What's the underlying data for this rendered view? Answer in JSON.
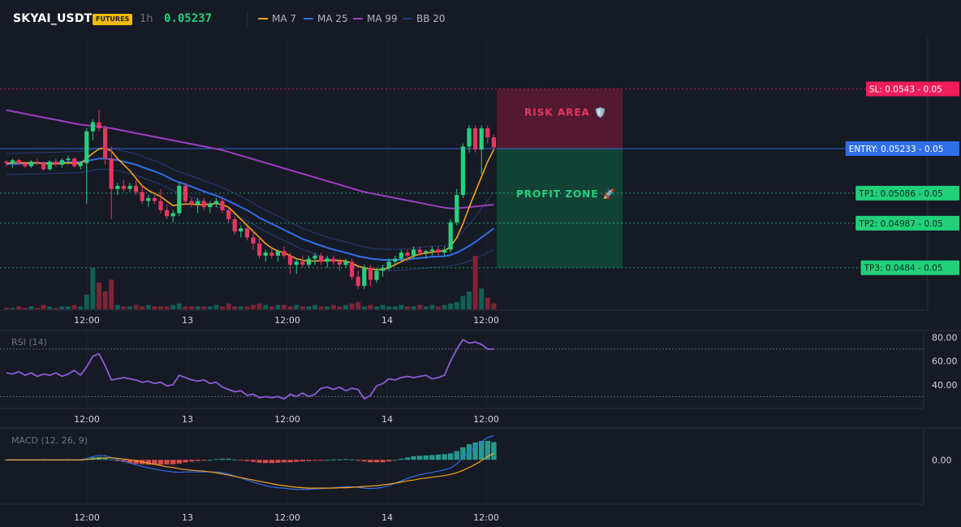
{
  "header": {
    "symbol": "SKYAI_USDT",
    "badge": "FUTURES",
    "timeframe": "1h",
    "price": "0.05237",
    "legend": [
      {
        "name": "MA 7",
        "color": "#f7a21b"
      },
      {
        "name": "MA 25",
        "color": "#2f6fe8"
      },
      {
        "name": "MA 99",
        "color": "#9c3fc0"
      },
      {
        "name": "BB 20",
        "color": "#1e3b7a"
      }
    ]
  },
  "colors": {
    "up": "#26d07c",
    "down": "#e9365f",
    "vol_up": "#0f5f55",
    "vol_down": "#7d2434",
    "sl": "#f01c5c",
    "entry": "#2f6fe8",
    "tp": "#21d17a",
    "rsi": "#8e5bd6",
    "macd": "#2f6fe8",
    "signal": "#f7a21b",
    "hist_pos": "#26a69a",
    "hist_neg": "#ef5350"
  },
  "chart_data": [
    {
      "type": "candlestick",
      "ylim": [
        0.047,
        0.056
      ],
      "x_ticks": [
        "12:00",
        "13",
        "12:00",
        "14",
        "12:00"
      ],
      "levels": [
        {
          "label": "SL: 0.0543",
          "suffix": "0.05",
          "value": 0.0543,
          "kind": "sl"
        },
        {
          "label": "ENTRY: 0.05233",
          "suffix": "0.05",
          "value": 0.05233,
          "kind": "entry"
        },
        {
          "label": "TP1: 0.05086",
          "suffix": "0.05",
          "value": 0.05086,
          "kind": "tp"
        },
        {
          "label": "TP2: 0.04987",
          "suffix": "0.05",
          "value": 0.04987,
          "kind": "tp"
        },
        {
          "label": "TP3: 0.0484",
          "suffix": "0.05",
          "value": 0.0484,
          "kind": "tp"
        }
      ],
      "zones": {
        "risk": "RISK AREA 🛡️",
        "profit": "PROFIT ZONE 🚀"
      },
      "candles": [
        [
          0.0519,
          0.05195,
          0.05175,
          0.05185
        ],
        [
          0.05185,
          0.052,
          0.0517,
          0.05195
        ],
        [
          0.05195,
          0.052,
          0.0518,
          0.05185
        ],
        [
          0.05185,
          0.0519,
          0.0517,
          0.05175
        ],
        [
          0.05175,
          0.05195,
          0.0517,
          0.0519
        ],
        [
          0.0519,
          0.052,
          0.0518,
          0.05185
        ],
        [
          0.05185,
          0.0519,
          0.0516,
          0.05165
        ],
        [
          0.05165,
          0.05195,
          0.0516,
          0.0519
        ],
        [
          0.0519,
          0.052,
          0.05175,
          0.0518
        ],
        [
          0.0518,
          0.052,
          0.0517,
          0.05195
        ],
        [
          0.05195,
          0.0521,
          0.0518,
          0.052
        ],
        [
          0.052,
          0.05205,
          0.0517,
          0.05175
        ],
        [
          0.05175,
          0.0519,
          0.05165,
          0.05185
        ],
        [
          0.05185,
          0.053,
          0.0505,
          0.0529
        ],
        [
          0.0529,
          0.0533,
          0.0526,
          0.0532
        ],
        [
          0.0532,
          0.0536,
          0.0529,
          0.053
        ],
        [
          0.053,
          0.0531,
          0.0518,
          0.052
        ],
        [
          0.052,
          0.0524,
          0.05,
          0.051
        ],
        [
          0.051,
          0.0512,
          0.0508,
          0.0511
        ],
        [
          0.0511,
          0.0513,
          0.0509,
          0.051
        ],
        [
          0.051,
          0.0512,
          0.0509,
          0.0511
        ],
        [
          0.0511,
          0.0513,
          0.0508,
          0.0509
        ],
        [
          0.0509,
          0.0511,
          0.0505,
          0.0506
        ],
        [
          0.0506,
          0.0508,
          0.0504,
          0.0507
        ],
        [
          0.0507,
          0.0508,
          0.0505,
          0.0506
        ],
        [
          0.0506,
          0.051,
          0.0502,
          0.0503
        ],
        [
          0.0503,
          0.0505,
          0.05,
          0.0501
        ],
        [
          0.0501,
          0.0503,
          0.0499,
          0.0502
        ],
        [
          0.0502,
          0.0512,
          0.0501,
          0.0511
        ],
        [
          0.0511,
          0.0512,
          0.0505,
          0.0506
        ],
        [
          0.0506,
          0.0507,
          0.0504,
          0.0505
        ],
        [
          0.0505,
          0.0507,
          0.0502,
          0.0506
        ],
        [
          0.0506,
          0.0507,
          0.0503,
          0.0504
        ],
        [
          0.0504,
          0.0506,
          0.0502,
          0.0505
        ],
        [
          0.0505,
          0.0507,
          0.0504,
          0.0506
        ],
        [
          0.0506,
          0.0507,
          0.0502,
          0.0503
        ],
        [
          0.0503,
          0.0504,
          0.0499,
          0.05
        ],
        [
          0.05,
          0.0501,
          0.0495,
          0.0496
        ],
        [
          0.0496,
          0.0498,
          0.0494,
          0.0497
        ],
        [
          0.0497,
          0.0498,
          0.0493,
          0.0494
        ],
        [
          0.0494,
          0.0496,
          0.049,
          0.0492
        ],
        [
          0.0492,
          0.0494,
          0.0487,
          0.0488
        ],
        [
          0.0488,
          0.049,
          0.0486,
          0.0489
        ],
        [
          0.0489,
          0.0491,
          0.0487,
          0.0488
        ],
        [
          0.0488,
          0.049,
          0.0486,
          0.04895
        ],
        [
          0.04895,
          0.0491,
          0.0487,
          0.0488
        ],
        [
          0.0488,
          0.0489,
          0.0482,
          0.0485
        ],
        [
          0.0485,
          0.0487,
          0.0482,
          0.0486
        ],
        [
          0.0486,
          0.0488,
          0.0484,
          0.0485
        ],
        [
          0.0485,
          0.0488,
          0.0484,
          0.0487
        ],
        [
          0.0487,
          0.0489,
          0.0485,
          0.0488
        ],
        [
          0.0488,
          0.0489,
          0.0485,
          0.0486
        ],
        [
          0.0486,
          0.0488,
          0.0484,
          0.0487
        ],
        [
          0.0487,
          0.0488,
          0.0485,
          0.0486
        ],
        [
          0.0486,
          0.0487,
          0.0483,
          0.0485
        ],
        [
          0.0485,
          0.0487,
          0.0484,
          0.0486
        ],
        [
          0.0486,
          0.0487,
          0.048,
          0.0481
        ],
        [
          0.0481,
          0.0483,
          0.0477,
          0.0478
        ],
        [
          0.0478,
          0.0485,
          0.0477,
          0.0484
        ],
        [
          0.0484,
          0.0485,
          0.0478,
          0.048
        ],
        [
          0.048,
          0.0484,
          0.0479,
          0.0483
        ],
        [
          0.0483,
          0.0485,
          0.0481,
          0.0484
        ],
        [
          0.0484,
          0.0487,
          0.0483,
          0.0486
        ],
        [
          0.0486,
          0.0488,
          0.0485,
          0.0487
        ],
        [
          0.0487,
          0.049,
          0.0486,
          0.0489
        ],
        [
          0.0489,
          0.049,
          0.0486,
          0.0488
        ],
        [
          0.0488,
          0.0491,
          0.0487,
          0.049
        ],
        [
          0.049,
          0.0491,
          0.0488,
          0.0489
        ],
        [
          0.0489,
          0.049,
          0.0487,
          0.04895
        ],
        [
          0.04895,
          0.0491,
          0.0488,
          0.049
        ],
        [
          0.049,
          0.0491,
          0.0488,
          0.0489
        ],
        [
          0.0489,
          0.0491,
          0.0488,
          0.049
        ],
        [
          0.049,
          0.05,
          0.0489,
          0.0499
        ],
        [
          0.0499,
          0.051,
          0.0498,
          0.0508
        ],
        [
          0.0508,
          0.0525,
          0.0507,
          0.0524
        ],
        [
          0.0524,
          0.0531,
          0.0522,
          0.053
        ],
        [
          0.053,
          0.0531,
          0.0522,
          0.0523
        ],
        [
          0.0523,
          0.0531,
          0.0515,
          0.053
        ],
        [
          0.053,
          0.0531,
          0.0525,
          0.0527
        ],
        [
          0.0527,
          0.0528,
          0.0523,
          0.05237
        ]
      ],
      "volume": [
        1,
        1,
        2,
        1,
        2,
        1,
        3,
        2,
        1,
        2,
        2,
        3,
        2,
        10,
        28,
        18,
        12,
        20,
        3,
        2,
        2,
        3,
        2,
        3,
        2,
        2,
        2,
        3,
        4,
        2,
        2,
        2,
        2,
        2,
        3,
        2,
        4,
        2,
        2,
        2,
        3,
        4,
        3,
        2,
        3,
        3,
        2,
        3,
        2,
        2,
        3,
        2,
        2,
        3,
        2,
        3,
        4,
        5,
        2,
        3,
        2,
        3,
        2,
        2,
        3,
        2,
        2,
        3,
        2,
        3,
        2,
        3,
        4,
        5,
        9,
        12,
        36,
        14,
        8,
        4
      ],
      "ma7": [
        0.05185,
        0.05186,
        0.05187,
        0.05186,
        0.05186,
        0.05186,
        0.05184,
        0.05183,
        0.05183,
        0.05184,
        0.05186,
        0.05184,
        0.05184,
        0.052,
        0.05218,
        0.05232,
        0.05235,
        0.05225,
        0.052,
        0.0518,
        0.0516,
        0.05135,
        0.0511,
        0.05095,
        0.05085,
        0.05075,
        0.0506,
        0.05045,
        0.05048,
        0.0505,
        0.0505,
        0.05048,
        0.05048,
        0.0505,
        0.05052,
        0.05048,
        0.0504,
        0.0502,
        0.05,
        0.0498,
        0.0496,
        0.0494,
        0.0492,
        0.04905,
        0.04895,
        0.0489,
        0.0488,
        0.0487,
        0.04865,
        0.04862,
        0.04862,
        0.04864,
        0.04864,
        0.04865,
        0.04864,
        0.04862,
        0.04855,
        0.04845,
        0.0484,
        0.04836,
        0.04834,
        0.04834,
        0.0484,
        0.0485,
        0.0486,
        0.0487,
        0.04878,
        0.04885,
        0.04888,
        0.04892,
        0.04894,
        0.04896,
        0.0491,
        0.0494,
        0.04985,
        0.0504,
        0.0509,
        0.0514,
        0.0519,
        0.0523
      ],
      "ma25": [
        0.05182,
        0.05183,
        0.05183,
        0.05184,
        0.05184,
        0.05185,
        0.05185,
        0.05186,
        0.05186,
        0.05187,
        0.05188,
        0.05188,
        0.05189,
        0.05192,
        0.05196,
        0.052,
        0.052,
        0.05198,
        0.05195,
        0.0519,
        0.05185,
        0.0518,
        0.05172,
        0.05165,
        0.05158,
        0.0515,
        0.0514,
        0.0513,
        0.05122,
        0.05115,
        0.05108,
        0.051,
        0.05092,
        0.05085,
        0.05078,
        0.0507,
        0.0506,
        0.0505,
        0.0504,
        0.0503,
        0.05018,
        0.05005,
        0.04995,
        0.04985,
        0.04975,
        0.04965,
        0.04955,
        0.04945,
        0.04935,
        0.04928,
        0.0492,
        0.04913,
        0.04906,
        0.049,
        0.04895,
        0.0489,
        0.04884,
        0.04878,
        0.04874,
        0.0487,
        0.04868,
        0.04866,
        0.04866,
        0.04866,
        0.04867,
        0.04868,
        0.0487,
        0.04872,
        0.04874,
        0.04876,
        0.04877,
        0.04878,
        0.04882,
        0.0489,
        0.049,
        0.04912,
        0.04925,
        0.0494,
        0.04955,
        0.0497
      ],
      "ma99": [
        0.0536,
        0.05356,
        0.05352,
        0.05348,
        0.05344,
        0.0534,
        0.05336,
        0.05332,
        0.05328,
        0.05324,
        0.0532,
        0.05316,
        0.05312,
        0.0531,
        0.05308,
        0.05306,
        0.05303,
        0.053,
        0.05296,
        0.05292,
        0.05288,
        0.05284,
        0.0528,
        0.05276,
        0.05272,
        0.05268,
        0.05264,
        0.0526,
        0.05256,
        0.05252,
        0.05248,
        0.05244,
        0.0524,
        0.05236,
        0.05232,
        0.05228,
        0.05222,
        0.05216,
        0.0521,
        0.05204,
        0.05198,
        0.05192,
        0.05186,
        0.0518,
        0.05174,
        0.05168,
        0.05162,
        0.05156,
        0.0515,
        0.05144,
        0.05138,
        0.05132,
        0.05126,
        0.0512,
        0.05114,
        0.05108,
        0.05102,
        0.05096,
        0.0509,
        0.05086,
        0.05082,
        0.05078,
        0.05074,
        0.0507,
        0.05066,
        0.05062,
        0.05058,
        0.05054,
        0.0505,
        0.05046,
        0.05042,
        0.05038,
        0.05036,
        0.05036,
        0.05038,
        0.0504,
        0.05042,
        0.05044,
        0.05046,
        0.05048
      ]
    },
    {
      "type": "line",
      "title": "RSI (14)",
      "ylim": [
        20,
        85
      ],
      "y_ticks": [
        "80.00",
        "60.00",
        "40.00"
      ],
      "bands": [
        70,
        30
      ],
      "values": [
        50,
        49,
        51,
        48,
        50,
        47,
        49,
        48,
        50,
        47,
        49,
        52,
        48,
        55,
        64,
        66,
        56,
        44,
        45,
        46,
        45,
        44,
        42,
        43,
        41,
        42,
        39,
        40,
        48,
        46,
        44,
        43,
        44,
        41,
        42,
        38,
        36,
        34,
        35,
        31,
        32,
        29,
        30,
        29,
        30,
        28,
        32,
        30,
        33,
        30,
        32,
        37,
        38,
        36,
        38,
        35,
        37,
        36,
        28,
        31,
        39,
        41,
        45,
        44,
        46,
        47,
        46,
        47,
        48,
        45,
        46,
        48,
        60,
        70,
        78,
        75,
        76,
        74,
        70,
        70
      ]
    },
    {
      "type": "macd",
      "title": "MACD (12, 26, 9)",
      "ylim": [
        -0.0011,
        0.00075
      ],
      "y_ticks": [
        "0.00"
      ],
      "macd": [
        0,
        0,
        0,
        0,
        0,
        0,
        0,
        0,
        0,
        0,
        0,
        0,
        0,
        3e-05,
        8e-05,
        0.00011,
        0.0001,
        6e-05,
        1e-05,
        -3e-05,
        -8e-05,
        -0.00012,
        -0.00016,
        -0.0002,
        -0.00023,
        -0.00026,
        -0.00028,
        -0.0003,
        -0.00031,
        -0.0003,
        -0.0003,
        -0.0003,
        -0.0003,
        -0.0003,
        -0.0003,
        -0.00032,
        -0.00035,
        -0.0004,
        -0.00045,
        -0.0005,
        -0.00055,
        -0.0006,
        -0.00064,
        -0.00067,
        -0.00069,
        -0.0007,
        -0.00072,
        -0.00073,
        -0.00073,
        -0.00073,
        -0.00072,
        -0.00071,
        -0.0007,
        -0.00069,
        -0.00068,
        -0.00067,
        -0.00067,
        -0.00068,
        -0.0007,
        -0.00071,
        -0.0007,
        -0.00068,
        -0.00064,
        -0.00058,
        -0.00052,
        -0.00046,
        -0.00041,
        -0.00037,
        -0.00034,
        -0.00031,
        -0.00028,
        -0.00025,
        -0.0002,
        -0.0001,
        5e-05,
        0.0002,
        0.00032,
        0.00045,
        0.00055,
        0.0006
      ],
      "signal": [
        0,
        0,
        0,
        0,
        0,
        0,
        0,
        0,
        0,
        0,
        0,
        0,
        0,
        1e-05,
        2e-05,
        4e-05,
        5e-05,
        5e-05,
        4e-05,
        2e-05,
        0,
        -2e-05,
        -5e-05,
        -8e-05,
        -0.00011,
        -0.00014,
        -0.00017,
        -0.00019,
        -0.00022,
        -0.00024,
        -0.00026,
        -0.00027,
        -0.00028,
        -0.0003,
        -0.00032,
        -0.00035,
        -0.00038,
        -0.00041,
        -0.00044,
        -0.00047,
        -0.0005,
        -0.00053,
        -0.00056,
        -0.00059,
        -0.00062,
        -0.00064,
        -0.00066,
        -0.00068,
        -0.00069,
        -0.0007,
        -0.0007,
        -0.0007,
        -0.0007,
        -0.0007,
        -0.00069,
        -0.00069,
        -0.00068,
        -0.00067,
        -0.00066,
        -0.00065,
        -0.00064,
        -0.00062,
        -0.0006,
        -0.00058,
        -0.00055,
        -0.00052,
        -0.0005,
        -0.00047,
        -0.00045,
        -0.00043,
        -0.00041,
        -0.00039,
        -0.00036,
        -0.00032,
        -0.00026,
        -0.00019,
        -0.00011,
        -2e-05,
        8e-05,
        0.00016
      ],
      "hist": [
        0,
        0,
        0,
        0,
        0,
        0,
        0,
        0,
        0,
        0,
        0,
        0,
        0,
        2e-05,
        6e-05,
        7e-05,
        5e-05,
        1e-05,
        -3e-05,
        -5e-05,
        -8e-05,
        -0.0001,
        -0.00011,
        -0.00012,
        -0.00012,
        -0.00012,
        -0.00011,
        -0.00011,
        -9e-05,
        -6e-05,
        -4e-05,
        -3e-05,
        -2e-05,
        0,
        2e-05,
        3e-05,
        3e-05,
        1e-05,
        -1e-05,
        -3e-05,
        -5e-05,
        -7e-05,
        -8e-05,
        -8e-05,
        -7e-05,
        -6e-05,
        -6e-05,
        -5e-05,
        -4e-05,
        -3e-05,
        -2e-05,
        -1e-05,
        0,
        1e-05,
        1e-05,
        2e-05,
        1e-05,
        -1e-05,
        -4e-05,
        -6e-05,
        -6e-05,
        -6e-05,
        -4e-05,
        0,
        3e-05,
        6e-05,
        9e-05,
        0.0001,
        0.00011,
        0.00012,
        0.00013,
        0.00014,
        0.00016,
        0.00022,
        0.00031,
        0.00039,
        0.00043,
        0.00047,
        0.00047,
        0.00044
      ]
    }
  ]
}
